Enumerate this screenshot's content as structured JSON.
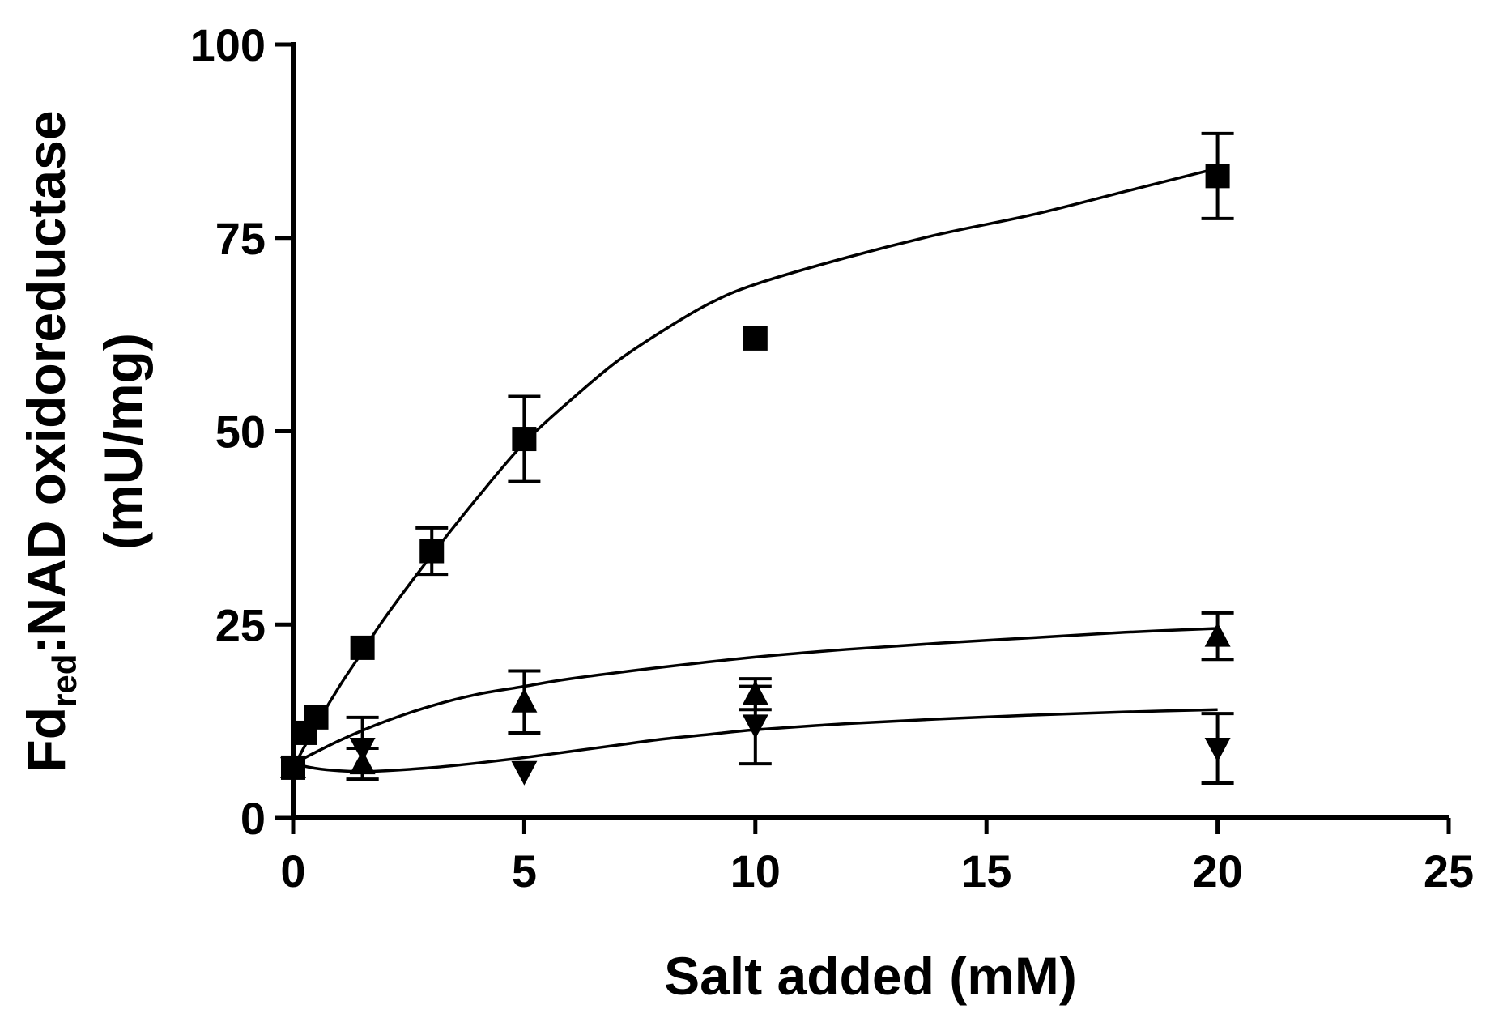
{
  "chart_data": {
    "type": "scatter",
    "title": "",
    "xlabel": "Salt added (mM)",
    "ylabel_main": "Fd",
    "ylabel_sub": "red",
    "ylabel_rest": ":NAD oxidoreductase",
    "ylabel_line2": "(mU/mg)",
    "xlim": [
      0,
      25
    ],
    "ylim": [
      0,
      100
    ],
    "x_ticks": [
      "0",
      "5",
      "10",
      "15",
      "20",
      "25"
    ],
    "y_ticks": [
      "0",
      "25",
      "50",
      "75",
      "100"
    ],
    "grid": false,
    "legend": false,
    "series": [
      {
        "marker": "square",
        "points": [
          {
            "x": 0,
            "y": 6.5,
            "err": 0
          },
          {
            "x": 0.25,
            "y": 11,
            "err": 0
          },
          {
            "x": 0.5,
            "y": 13,
            "err": 0
          },
          {
            "x": 1.5,
            "y": 22,
            "err": 0
          },
          {
            "x": 3,
            "y": 34.5,
            "err": 3
          },
          {
            "x": 5,
            "y": 49,
            "err": 5.5
          },
          {
            "x": 10,
            "y": 62,
            "err": 0
          },
          {
            "x": 20,
            "y": 83,
            "err": 5.5
          }
        ],
        "fit": [
          [
            0,
            6.5
          ],
          [
            0.5,
            12
          ],
          [
            1,
            17
          ],
          [
            1.5,
            21.5
          ],
          [
            2,
            26
          ],
          [
            3,
            34
          ],
          [
            4,
            41.5
          ],
          [
            5,
            48.5
          ],
          [
            6,
            54
          ],
          [
            7,
            59
          ],
          [
            8,
            63
          ],
          [
            9,
            66.5
          ],
          [
            10,
            69
          ],
          [
            12,
            72.5
          ],
          [
            14,
            75.5
          ],
          [
            16,
            78
          ],
          [
            18,
            81
          ],
          [
            20,
            84
          ]
        ]
      },
      {
        "marker": "triangle-up",
        "points": [
          {
            "x": 0,
            "y": 6.5,
            "err": 0
          },
          {
            "x": 1.5,
            "y": 7,
            "err": 2
          },
          {
            "x": 5,
            "y": 15,
            "err": 4
          },
          {
            "x": 10,
            "y": 16,
            "err": 2
          },
          {
            "x": 20,
            "y": 23.5,
            "err": 3
          }
        ],
        "fit": [
          [
            0,
            7
          ],
          [
            1,
            10
          ],
          [
            2,
            12.5
          ],
          [
            3,
            14.5
          ],
          [
            4,
            16
          ],
          [
            5,
            17
          ],
          [
            6,
            18
          ],
          [
            8,
            19.5
          ],
          [
            10,
            20.8
          ],
          [
            12,
            21.8
          ],
          [
            14,
            22.6
          ],
          [
            16,
            23.3
          ],
          [
            18,
            24
          ],
          [
            20,
            24.5
          ]
        ]
      },
      {
        "marker": "triangle-down",
        "points": [
          {
            "x": 0,
            "y": 6.5,
            "err": 0
          },
          {
            "x": 1.5,
            "y": 9,
            "err": 4
          },
          {
            "x": 5,
            "y": 6,
            "err": 0
          },
          {
            "x": 10,
            "y": 12,
            "err": 5
          },
          {
            "x": 20,
            "y": 9,
            "err": 4.5
          }
        ],
        "fit": [
          [
            0,
            7
          ],
          [
            0.5,
            6.4
          ],
          [
            1,
            6.1
          ],
          [
            1.5,
            6
          ],
          [
            2,
            6.1
          ],
          [
            3,
            6.5
          ],
          [
            4,
            7.1
          ],
          [
            5,
            7.8
          ],
          [
            6,
            8.6
          ],
          [
            7,
            9.4
          ],
          [
            8,
            10.2
          ],
          [
            9,
            10.8
          ],
          [
            10,
            11.4
          ],
          [
            12,
            12.2
          ],
          [
            14,
            12.8
          ],
          [
            16,
            13.3
          ],
          [
            18,
            13.7
          ],
          [
            20,
            14
          ]
        ]
      }
    ]
  }
}
